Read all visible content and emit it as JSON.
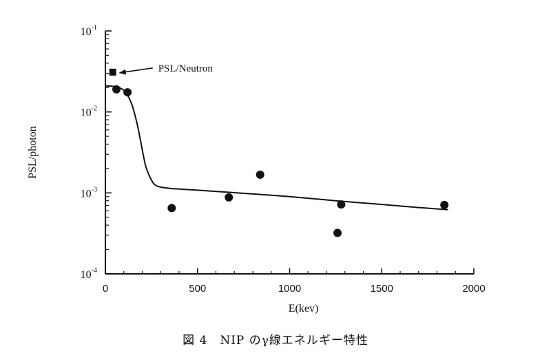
{
  "chart_data": {
    "type": "scatter",
    "title": "",
    "xlabel": "E(kev)",
    "ylabel": "PSL/photon",
    "xlim": [
      0,
      2000
    ],
    "ylim": [
      0.0001,
      0.1
    ],
    "y_scale": "log",
    "grid": false,
    "x_ticks": [
      0,
      500,
      1000,
      1500,
      2000
    ],
    "x_tick_labels": [
      "0",
      "500",
      "1000",
      "1500",
      "2000"
    ],
    "y_ticks": [
      0.0001,
      0.001,
      0.01,
      0.1
    ],
    "y_tick_labels": [
      {
        "base": "10",
        "exp": "-4"
      },
      {
        "base": "10",
        "exp": "-3"
      },
      {
        "base": "10",
        "exp": "-2"
      },
      {
        "base": "10",
        "exp": "-1"
      }
    ],
    "series": [
      {
        "marker": "circle",
        "color": "#111111",
        "x": [
          60,
          120,
          360,
          670,
          840,
          1260,
          1280,
          1840
        ],
        "y": [
          0.019,
          0.0175,
          0.00065,
          0.00088,
          0.00168,
          0.00032,
          0.00072,
          0.00071
        ]
      },
      {
        "marker": "square",
        "color": "#111111",
        "x": [
          40
        ],
        "y": [
          0.031
        ]
      }
    ],
    "fit_curve": {
      "color": "#111111",
      "x": [
        0,
        50,
        100,
        140,
        170,
        190,
        205,
        220,
        240,
        265,
        300,
        360,
        500,
        800,
        1000,
        1250,
        1500,
        1700,
        1860
      ],
      "y": [
        0.021,
        0.0205,
        0.0185,
        0.013,
        0.0075,
        0.0045,
        0.003,
        0.0021,
        0.0016,
        0.00128,
        0.00118,
        0.00113,
        0.00108,
        0.00097,
        0.0009,
        0.0008,
        0.00072,
        0.00066,
        0.00062
      ]
    },
    "annotations": [
      {
        "text": "PSL/Neutron",
        "points_to": {
          "x": 40,
          "y": 0.031
        }
      }
    ]
  },
  "caption": "図 4　NIP のγ線エネルギー特性"
}
